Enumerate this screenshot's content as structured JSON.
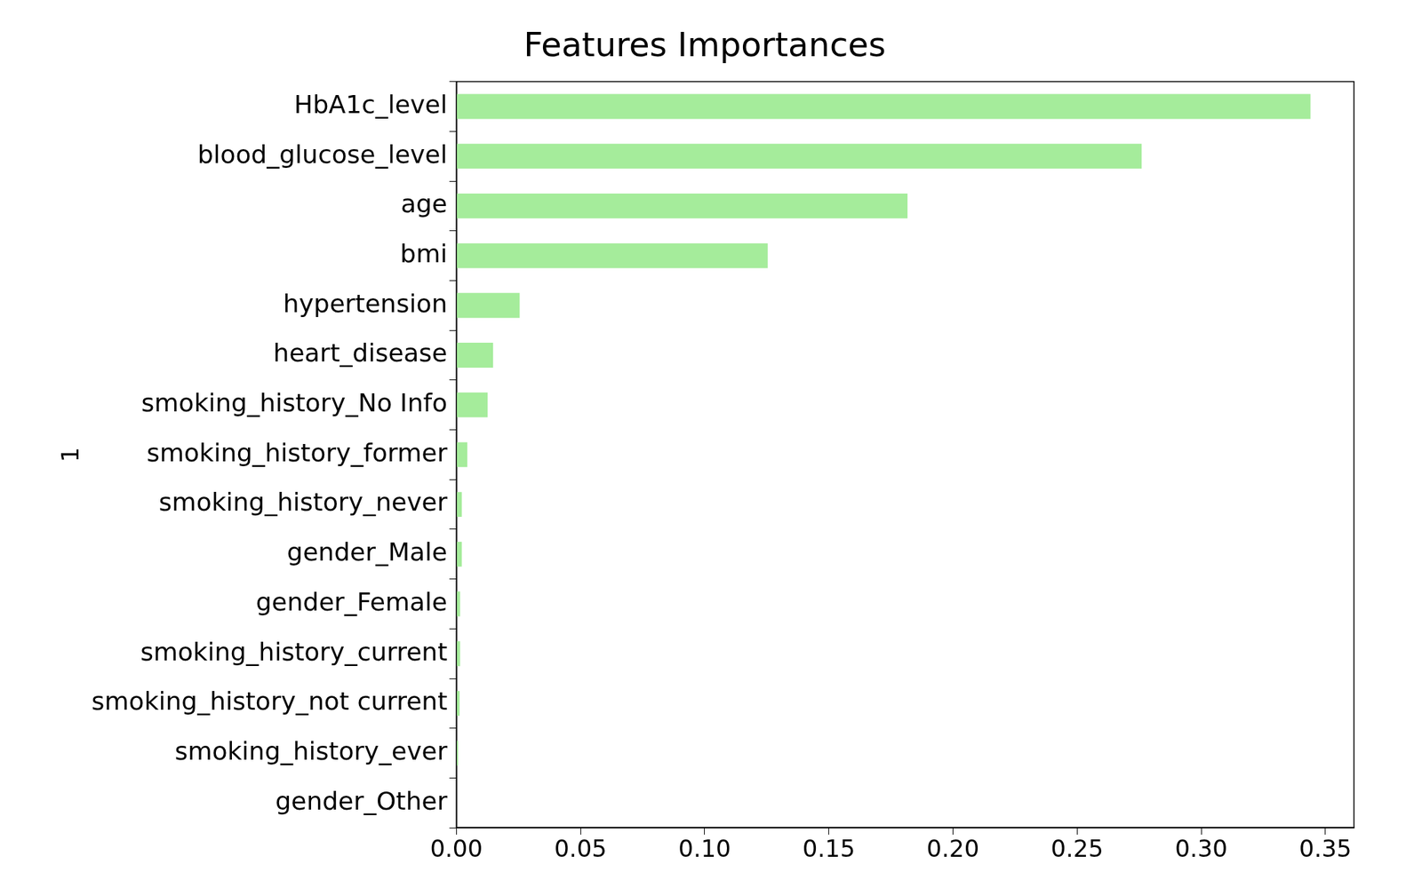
{
  "chart_data": {
    "type": "bar",
    "orientation": "horizontal",
    "title": "Features Importances",
    "y_label": "1",
    "categories": [
      "HbA1c_level",
      "blood_glucose_level",
      "age",
      "bmi",
      "hypertension",
      "heart_disease",
      "smoking_history_No Info",
      "smoking_history_former",
      "smoking_history_never",
      "gender_Male",
      "gender_Female",
      "smoking_history_current",
      "smoking_history_not current",
      "smoking_history_ever",
      "gender_Other"
    ],
    "values": [
      0.344,
      0.276,
      0.1817,
      0.1254,
      0.0255,
      0.0148,
      0.0126,
      0.0044,
      0.0022,
      0.0022,
      0.0015,
      0.0015,
      0.0013,
      0.0007,
      0.0
    ],
    "color": "#a5ec9b",
    "xlim": [
      0,
      0.3615
    ],
    "xticks": [
      {
        "value": 0,
        "label": "0.00"
      },
      0.05,
      {
        "value": 0.1,
        "label": "0.10"
      },
      0.15,
      {
        "value": 0.2,
        "label": "0.20"
      },
      0.25,
      {
        "value": 0.3,
        "label": "0.30"
      },
      0.35
    ],
    "grid": false
  }
}
